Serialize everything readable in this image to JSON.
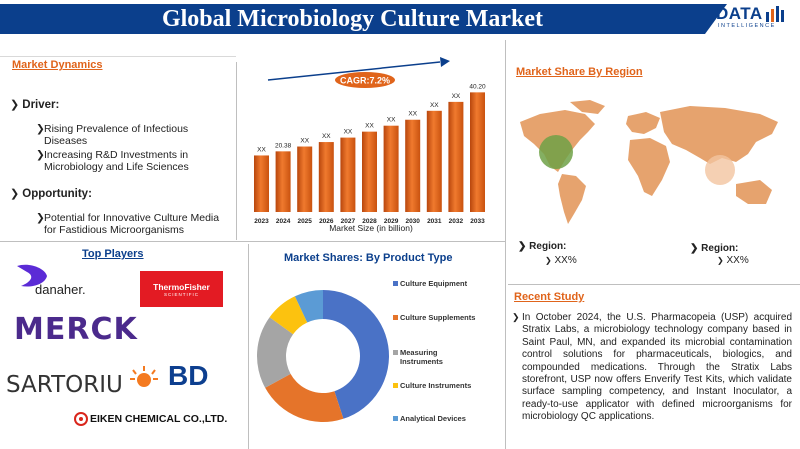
{
  "header": {
    "title": "Global Microbiology Culture Market",
    "logo_main": "DATA",
    "logo_sub": "INTELLIGENCE"
  },
  "market_dynamics": {
    "title": "Market Dynamics",
    "driver_label": "Driver:",
    "drivers": [
      "Rising Prevalence of Infectious Diseases",
      "Increasing R&D Investments in Microbiology and Life Sciences"
    ],
    "opportunity_label": "Opportunity:",
    "opportunities": [
      "Potential for Innovative Culture Media for Fastidious Microorganisms"
    ]
  },
  "market_size_chart": {
    "cagr": "CAGR:7.2%",
    "xlabel": "Market Size (in billion)"
  },
  "chart_data": [
    {
      "type": "bar",
      "categories": [
        "2023",
        "2024",
        "2025",
        "2026",
        "2027",
        "2028",
        "2029",
        "2030",
        "2031",
        "2032",
        "2033"
      ],
      "value_labels": [
        "XX",
        "20.38",
        "XX",
        "XX",
        "XX",
        "XX",
        "XX",
        "XX",
        "XX",
        "XX",
        "40.20"
      ],
      "values": [
        19,
        20.38,
        22,
        23.5,
        25,
        27,
        29,
        31,
        34,
        37,
        40.2
      ],
      "xlabel": "Market Size (in billion)",
      "color": "#e0641b"
    },
    {
      "type": "pie",
      "title": "Market Shares: By Product Type",
      "categories": [
        "Culture Equipment",
        "Culture Supplements",
        "Measuring Instruments",
        "Culture Instruments",
        "Analytical Devices"
      ],
      "legend_lines": [
        [
          "Culture Equipment"
        ],
        [
          "Culture Supplements"
        ],
        [
          "Measuring",
          "Instruments"
        ],
        [
          "Culture Instruments"
        ],
        [
          "Analytical Devices"
        ]
      ],
      "values": [
        45,
        22,
        18,
        8,
        7
      ],
      "colors": [
        "#4a72c6",
        "#e5742a",
        "#a5a5a5",
        "#fcc20f",
        "#5b9bd5"
      ]
    }
  ],
  "region": {
    "title": "Market Share By Region",
    "items": [
      {
        "label": "Region:",
        "value": "XX%"
      },
      {
        "label": "Region:",
        "value": "XX%"
      }
    ]
  },
  "top_players": {
    "title": "Top Players",
    "logos": [
      "danaher.",
      "ThermoFisher",
      "SCIENTIFIC",
      "MERCK",
      "SARTORIUS",
      "BD",
      "EIKEN CHEMICAL CO.,LTD."
    ]
  },
  "recent_study": {
    "title": "Recent Study",
    "text": "In October 2024, the U.S. Pharmacopeia (USP) acquired Stratix Labs, a microbiology technology company based in Saint Paul, MN, and expanded its microbial contamination control solutions for pharmaceuticals, biologics, and compounded medications. Through the Stratix Labs storefront, USP now offers Enverify Test Kits, which validate surface sampling competency, and Instant Inoculator, a ready-to-use applicator with defined microorganisms for microbiology QC applications."
  }
}
